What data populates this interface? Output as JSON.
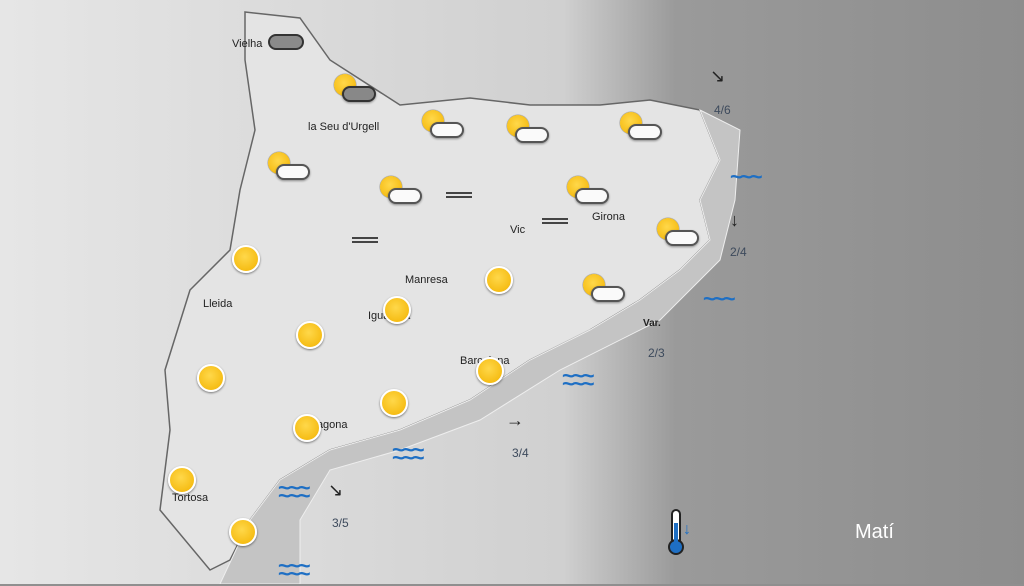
{
  "cities": [
    "Vielha",
    "la Seu d'Urgell",
    "Lleida",
    "Manresa",
    "Vic",
    "Girona",
    "Igualada",
    "Barcelona",
    "Tarragona",
    "Tortosa"
  ],
  "sea": {
    "wind_4_6": "4/6",
    "wind_2_4": "2/4",
    "var_label": "Var.",
    "wind_2_3": "2/3",
    "wind_3_4": "3/4",
    "wind_3_5": "3/5"
  },
  "period": "Matí",
  "icons": {
    "sun": "sunny-icon",
    "sun_cloud": "partly-cloudy-icon",
    "cloud": "cloudy-icon",
    "fog": "fog-icon",
    "waves": "sea-waves-icon",
    "thermometer": "temperature-falling-icon"
  },
  "colors": {
    "waves": "#1e6fc4",
    "sun": "#f2b200",
    "thermo_arrow": "#1e6fc4"
  }
}
